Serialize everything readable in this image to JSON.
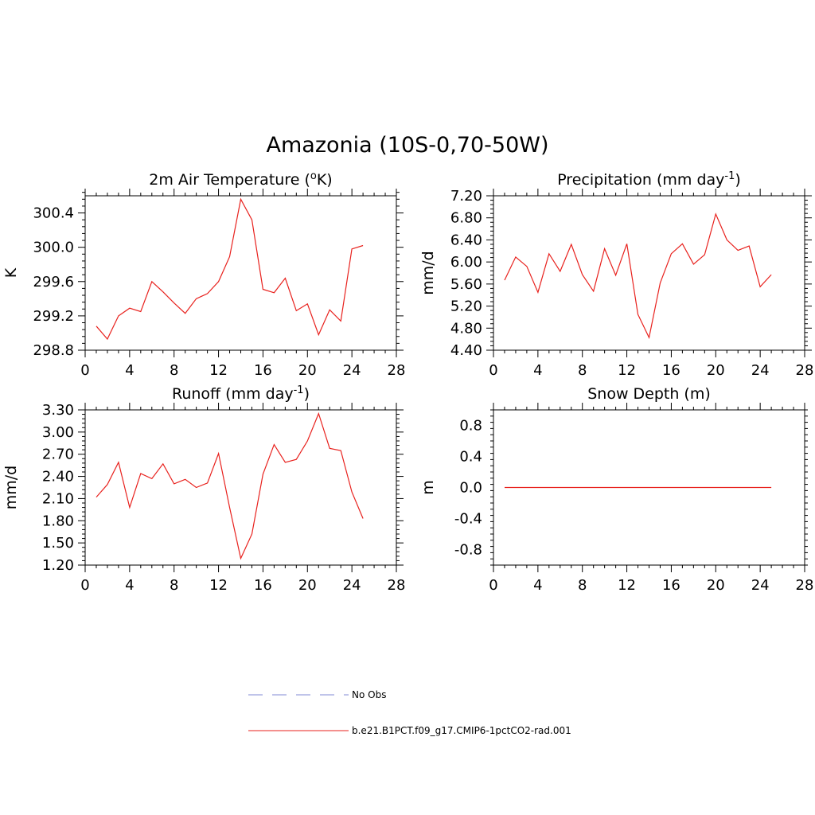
{
  "figure": {
    "title": "Amazonia (10S-0,70-50W)"
  },
  "colors": {
    "model_line": "#e8211d",
    "obs_line": "#9aa0dd",
    "axis": "#000000"
  },
  "chart_data": [
    {
      "type": "line",
      "title": "2m Air Temperature (",
      "title_sup": "o",
      "title_suffix": "K)",
      "ylabel": "K",
      "xlabel": "",
      "xlim": [
        0,
        28
      ],
      "x_ticks": [
        0,
        4,
        8,
        12,
        16,
        20,
        24,
        28
      ],
      "ylim": [
        298.8,
        300.6
      ],
      "y_ticks": [
        298.8,
        299.2,
        299.6,
        300.0,
        300.4
      ],
      "y_tick_labels": [
        "298.8",
        "299.2",
        "299.6",
        "300.0",
        "300.4"
      ],
      "x": [
        1,
        2,
        3,
        4,
        5,
        6,
        7,
        8,
        9,
        10,
        11,
        12,
        13,
        14,
        15,
        16,
        17,
        18,
        19,
        20,
        21,
        22,
        23,
        24,
        25
      ],
      "series": [
        {
          "name": "b.e21.B1PCT.f09_g17.CMIP6-1pctCO2-rad.001",
          "values": [
            299.08,
            298.93,
            299.2,
            299.29,
            299.25,
            299.6,
            299.48,
            299.35,
            299.23,
            299.4,
            299.46,
            299.6,
            299.89,
            300.56,
            300.32,
            299.51,
            299.47,
            299.64,
            299.26,
            299.34,
            298.98,
            299.27,
            299.14,
            299.98,
            300.02
          ]
        }
      ]
    },
    {
      "type": "line",
      "title": "Precipitation (mm day",
      "title_sup": "-1",
      "title_suffix": ")",
      "ylabel": "mm/d",
      "xlabel": "",
      "xlim": [
        0,
        28
      ],
      "x_ticks": [
        0,
        4,
        8,
        12,
        16,
        20,
        24,
        28
      ],
      "ylim": [
        4.4,
        7.2
      ],
      "y_ticks": [
        4.4,
        4.8,
        5.2,
        5.6,
        6.0,
        6.4,
        6.8,
        7.2
      ],
      "y_tick_labels": [
        "4.40",
        "4.80",
        "5.20",
        "5.60",
        "6.00",
        "6.40",
        "6.80",
        "7.20"
      ],
      "x": [
        1,
        2,
        3,
        4,
        5,
        6,
        7,
        8,
        9,
        10,
        11,
        12,
        13,
        14,
        15,
        16,
        17,
        18,
        19,
        20,
        21,
        22,
        23,
        24,
        25
      ],
      "series": [
        {
          "name": "b.e21.B1PCT.f09_g17.CMIP6-1pctCO2-rad.001",
          "values": [
            5.67,
            6.09,
            5.92,
            5.45,
            6.15,
            5.83,
            6.32,
            5.77,
            5.47,
            6.24,
            5.76,
            6.33,
            5.05,
            4.63,
            5.62,
            6.15,
            6.33,
            5.96,
            6.13,
            6.87,
            6.4,
            6.21,
            6.29,
            5.55,
            5.77
          ]
        }
      ]
    },
    {
      "type": "line",
      "title": "Runoff (mm day",
      "title_sup": "-1",
      "title_suffix": ")",
      "ylabel": "mm/d",
      "xlabel": "",
      "xlim": [
        0,
        28
      ],
      "x_ticks": [
        0,
        4,
        8,
        12,
        16,
        20,
        24,
        28
      ],
      "ylim": [
        1.2,
        3.3
      ],
      "y_ticks": [
        1.2,
        1.5,
        1.8,
        2.1,
        2.4,
        2.7,
        3.0,
        3.3
      ],
      "y_tick_labels": [
        "1.20",
        "1.50",
        "1.80",
        "2.10",
        "2.40",
        "2.70",
        "3.00",
        "3.30"
      ],
      "x": [
        1,
        2,
        3,
        4,
        5,
        6,
        7,
        8,
        9,
        10,
        11,
        12,
        13,
        14,
        15,
        16,
        17,
        18,
        19,
        20,
        21,
        22,
        23,
        24,
        25
      ],
      "series": [
        {
          "name": "b.e21.B1PCT.f09_g17.CMIP6-1pctCO2-rad.001",
          "values": [
            2.12,
            2.29,
            2.59,
            1.98,
            2.44,
            2.37,
            2.57,
            2.3,
            2.36,
            2.25,
            2.31,
            2.71,
            1.98,
            1.29,
            1.62,
            2.43,
            2.83,
            2.59,
            2.63,
            2.88,
            3.25,
            2.78,
            2.75,
            2.19,
            1.83
          ]
        }
      ]
    },
    {
      "type": "line",
      "title": "Snow Depth (m)",
      "title_sup": "",
      "title_suffix": "",
      "ylabel": "m",
      "xlabel": "",
      "xlim": [
        0,
        28
      ],
      "x_ticks": [
        0,
        4,
        8,
        12,
        16,
        20,
        24,
        28
      ],
      "ylim": [
        -1.0,
        1.0
      ],
      "y_ticks": [
        -0.8,
        -0.4,
        0.0,
        0.4,
        0.8
      ],
      "y_tick_labels": [
        "-0.8",
        "-0.4",
        "0.0",
        "0.4",
        "0.8"
      ],
      "x": [
        1,
        2,
        3,
        4,
        5,
        6,
        7,
        8,
        9,
        10,
        11,
        12,
        13,
        14,
        15,
        16,
        17,
        18,
        19,
        20,
        21,
        22,
        23,
        24,
        25
      ],
      "series": [
        {
          "name": "b.e21.B1PCT.f09_g17.CMIP6-1pctCO2-rad.001",
          "values": [
            0,
            0,
            0,
            0,
            0,
            0,
            0,
            0,
            0,
            0,
            0,
            0,
            0,
            0,
            0,
            0,
            0,
            0,
            0,
            0,
            0,
            0,
            0,
            0,
            0
          ]
        }
      ]
    }
  ],
  "legend": {
    "items": [
      {
        "label": "No Obs",
        "style": "dashed"
      },
      {
        "label": "b.e21.B1PCT.f09_g17.CMIP6-1pctCO2-rad.001",
        "style": "solid"
      }
    ]
  }
}
